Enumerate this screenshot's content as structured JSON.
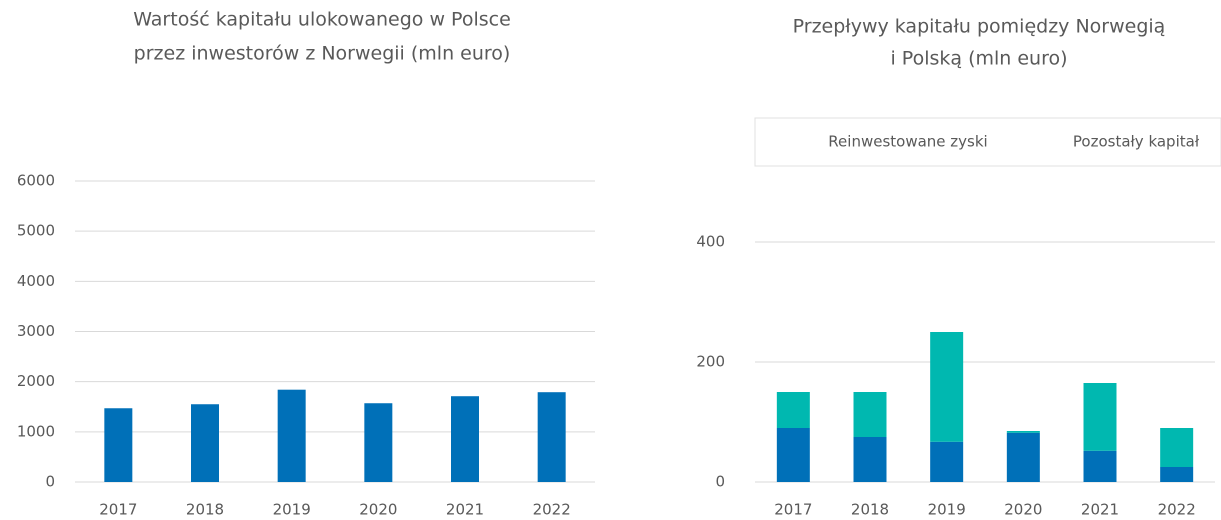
{
  "chart_data": [
    {
      "type": "bar",
      "title": [
        "Wartość kapitału ulokowanego w Polsce",
        "przez inwestorów z Norwegii (mln euro)"
      ],
      "categories": [
        "2017",
        "2018",
        "2019",
        "2020",
        "2021",
        "2022"
      ],
      "values": [
        1470,
        1550,
        1840,
        1570,
        1710,
        1790
      ],
      "color": "#0070b8",
      "ylim": [
        0,
        6000
      ],
      "yticks": [
        0,
        1000,
        2000,
        3000,
        4000,
        5000,
        6000
      ],
      "grid": true
    },
    {
      "type": "stacked_bar",
      "title": [
        "Przepływy kapitału pomiędzy Norwegią",
        "i Polską (mln euro)"
      ],
      "categories": [
        "2017",
        "2018",
        "2019",
        "2020",
        "2021",
        "2022"
      ],
      "series": [
        {
          "name": "Reinwestowane zyski",
          "color": "#0070b8",
          "values": [
            90,
            75,
            67,
            82,
            52,
            25
          ]
        },
        {
          "name": "Pozostały kapitał",
          "color": "#00b8b0",
          "values": [
            60,
            75,
            183,
            3,
            113,
            65
          ]
        }
      ],
      "ylim": [
        0,
        400
      ],
      "yticks": [
        0,
        200,
        400
      ],
      "grid": true,
      "legend": "top"
    }
  ]
}
